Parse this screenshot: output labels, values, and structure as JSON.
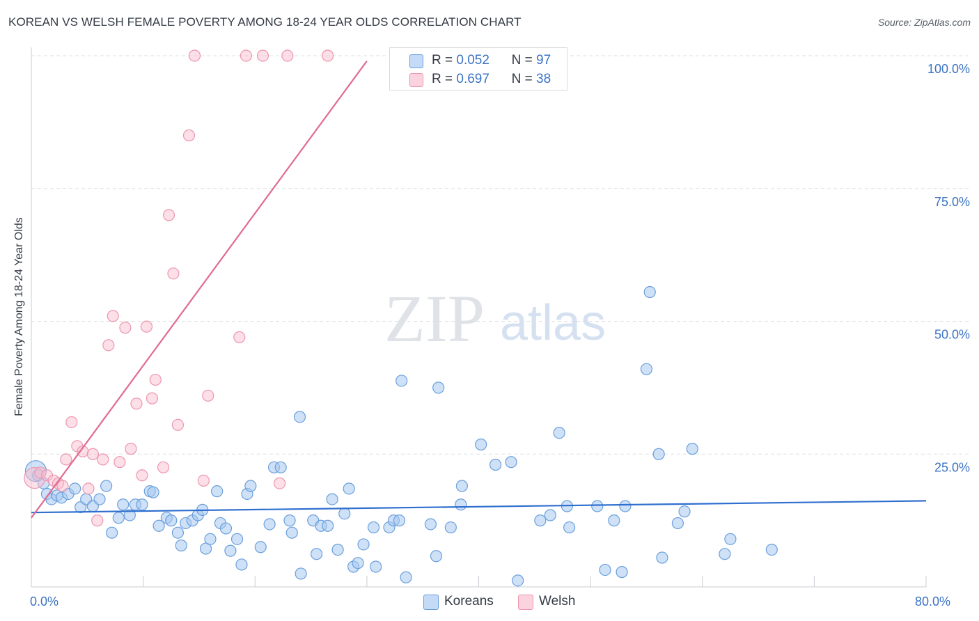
{
  "title": "KOREAN VS WELSH FEMALE POVERTY AMONG 18-24 YEAR OLDS CORRELATION CHART",
  "source": "Source: ZipAtlas.com",
  "watermark": {
    "zip": "ZIP",
    "atlas": "atlas"
  },
  "legend": {
    "r_label": "R =",
    "n_label": "N =",
    "rows": [
      {
        "name": "Koreans",
        "r": "0.052",
        "n": "97",
        "color": "#a8c8f0"
      },
      {
        "name": "Welsh",
        "r": "0.697",
        "n": "38",
        "color": "#f9c0d0"
      }
    ]
  },
  "bottom_legend": [
    "Koreans",
    "Welsh"
  ],
  "colors": {
    "korean_fill": "#a8c8f0",
    "korean_stroke": "#6a9fdc",
    "korean_line": "#2f6fcf",
    "welsh_fill": "#f9c0d0",
    "welsh_stroke": "#ec96b0",
    "welsh_line": "#e06a93",
    "grid": "#dcdfe4",
    "tick_text": "#3b73c4"
  },
  "chart_data": {
    "type": "scatter",
    "title": "KOREAN VS WELSH FEMALE POVERTY AMONG 18-24 YEAR OLDS CORRELATION CHART",
    "xlabel": "",
    "ylabel": "Female Poverty Among 18-24 Year Olds",
    "xlim": [
      0,
      80
    ],
    "ylim": [
      0,
      100
    ],
    "x_tick_labels": [
      {
        "value": 0,
        "label": "0.0%"
      },
      {
        "value": 80,
        "label": "80.0%"
      }
    ],
    "y_tick_labels": [
      {
        "value": 25,
        "label": "25.0%"
      },
      {
        "value": 50,
        "label": "50.0%"
      },
      {
        "value": 75,
        "label": "75.0%"
      },
      {
        "value": 100,
        "label": "100.0%"
      }
    ],
    "series": [
      {
        "name": "Koreans",
        "r": 0.052,
        "n": 97,
        "trend": {
          "x": [
            0,
            80
          ],
          "y": [
            14.0,
            16.2
          ]
        },
        "points": [
          [
            0.4,
            21.8
          ],
          [
            0.6,
            21.0
          ],
          [
            1.1,
            19.5
          ],
          [
            1.4,
            17.5
          ],
          [
            1.8,
            16.5
          ],
          [
            2.3,
            17.2
          ],
          [
            2.7,
            16.8
          ],
          [
            3.3,
            17.5
          ],
          [
            3.9,
            18.5
          ],
          [
            4.4,
            15.0
          ],
          [
            4.9,
            16.5
          ],
          [
            5.5,
            15.2
          ],
          [
            6.1,
            16.5
          ],
          [
            6.7,
            19.0
          ],
          [
            7.2,
            10.2
          ],
          [
            7.8,
            13.0
          ],
          [
            8.2,
            15.5
          ],
          [
            8.8,
            13.5
          ],
          [
            9.3,
            15.5
          ],
          [
            9.9,
            15.5
          ],
          [
            10.6,
            18.0
          ],
          [
            10.9,
            17.8
          ],
          [
            11.4,
            11.5
          ],
          [
            12.1,
            13.0
          ],
          [
            12.5,
            12.5
          ],
          [
            13.1,
            10.2
          ],
          [
            13.4,
            7.8
          ],
          [
            13.8,
            12.0
          ],
          [
            14.4,
            12.5
          ],
          [
            14.9,
            13.5
          ],
          [
            15.3,
            14.5
          ],
          [
            15.6,
            7.2
          ],
          [
            16.0,
            9.0
          ],
          [
            16.6,
            18.0
          ],
          [
            16.9,
            12.0
          ],
          [
            17.4,
            11.0
          ],
          [
            17.8,
            6.8
          ],
          [
            18.4,
            9.0
          ],
          [
            18.8,
            4.2
          ],
          [
            19.3,
            17.5
          ],
          [
            19.6,
            19.0
          ],
          [
            20.5,
            7.5
          ],
          [
            21.3,
            11.8
          ],
          [
            21.7,
            22.5
          ],
          [
            22.3,
            22.5
          ],
          [
            23.1,
            12.5
          ],
          [
            23.3,
            10.2
          ],
          [
            24.0,
            32.0
          ],
          [
            24.1,
            2.5
          ],
          [
            25.2,
            12.5
          ],
          [
            25.5,
            6.2
          ],
          [
            25.9,
            11.5
          ],
          [
            26.5,
            11.5
          ],
          [
            26.9,
            16.5
          ],
          [
            27.4,
            7.0
          ],
          [
            28.0,
            13.8
          ],
          [
            28.4,
            18.5
          ],
          [
            28.8,
            3.8
          ],
          [
            29.2,
            4.5
          ],
          [
            29.7,
            8.0
          ],
          [
            30.6,
            11.2
          ],
          [
            30.8,
            3.8
          ],
          [
            32.0,
            11.2
          ],
          [
            32.4,
            12.5
          ],
          [
            32.9,
            12.5
          ],
          [
            33.1,
            38.8
          ],
          [
            33.5,
            1.8
          ],
          [
            35.7,
            11.8
          ],
          [
            36.2,
            5.8
          ],
          [
            36.4,
            37.5
          ],
          [
            37.5,
            11.2
          ],
          [
            38.4,
            15.5
          ],
          [
            38.5,
            19.0
          ],
          [
            40.2,
            26.8
          ],
          [
            41.5,
            23.0
          ],
          [
            42.9,
            23.5
          ],
          [
            43.5,
            1.2
          ],
          [
            45.5,
            12.5
          ],
          [
            46.4,
            13.5
          ],
          [
            47.2,
            29.0
          ],
          [
            47.9,
            15.2
          ],
          [
            48.1,
            11.2
          ],
          [
            50.6,
            15.2
          ],
          [
            51.3,
            3.2
          ],
          [
            52.1,
            12.5
          ],
          [
            52.8,
            2.8
          ],
          [
            53.1,
            15.2
          ],
          [
            55.3,
            55.5
          ],
          [
            55.0,
            41.0
          ],
          [
            56.1,
            25.0
          ],
          [
            56.4,
            5.5
          ],
          [
            57.8,
            12.0
          ],
          [
            58.4,
            14.2
          ],
          [
            59.1,
            26.0
          ],
          [
            62.0,
            6.2
          ],
          [
            62.5,
            9.0
          ],
          [
            66.2,
            7.0
          ]
        ]
      },
      {
        "name": "Welsh",
        "r": 0.697,
        "n": 38,
        "trend": {
          "x": [
            0,
            30.0
          ],
          "y": [
            13.0,
            99.0
          ]
        },
        "points": [
          [
            0.3,
            20.5
          ],
          [
            0.8,
            21.5
          ],
          [
            1.4,
            21.0
          ],
          [
            2.0,
            20.0
          ],
          [
            2.4,
            19.5
          ],
          [
            2.8,
            19.0
          ],
          [
            3.1,
            24.0
          ],
          [
            3.6,
            31.0
          ],
          [
            4.1,
            26.5
          ],
          [
            4.6,
            25.5
          ],
          [
            5.1,
            18.5
          ],
          [
            5.5,
            25.0
          ],
          [
            5.9,
            12.5
          ],
          [
            6.4,
            24.0
          ],
          [
            6.9,
            45.5
          ],
          [
            7.3,
            51.0
          ],
          [
            7.9,
            23.5
          ],
          [
            8.4,
            48.8
          ],
          [
            8.9,
            26.0
          ],
          [
            9.4,
            34.5
          ],
          [
            9.9,
            21.0
          ],
          [
            10.3,
            49.0
          ],
          [
            10.8,
            35.5
          ],
          [
            11.1,
            39.0
          ],
          [
            11.8,
            22.5
          ],
          [
            12.3,
            70.0
          ],
          [
            12.7,
            59.0
          ],
          [
            13.1,
            30.5
          ],
          [
            14.1,
            85.0
          ],
          [
            14.6,
            100.0
          ],
          [
            15.4,
            20.0
          ],
          [
            15.8,
            36.0
          ],
          [
            18.6,
            47.0
          ],
          [
            19.2,
            100.0
          ],
          [
            20.7,
            100.0
          ],
          [
            22.2,
            19.5
          ],
          [
            22.9,
            100.0
          ],
          [
            26.5,
            100.0
          ]
        ]
      }
    ]
  }
}
